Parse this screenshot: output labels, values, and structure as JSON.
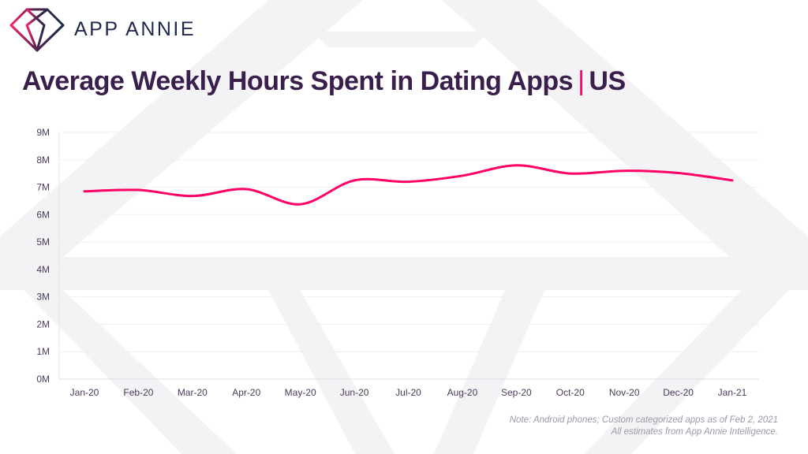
{
  "brand": {
    "name": "APP ANNIE"
  },
  "title": {
    "main": "Average Weekly Hours Spent in Dating Apps",
    "separator": "|",
    "region": "US"
  },
  "notes": [
    "Note: Android phones; Custom categorized apps as of Feb 2, 2021",
    "All estimates from App Annie Intelligence."
  ],
  "colors": {
    "line": "#ff0066",
    "title": "#3a1f4c",
    "logo_text": "#1e2a4a",
    "watermark": "#f3f3f5"
  },
  "chart_data": {
    "type": "line",
    "title": "Average Weekly Hours Spent in Dating Apps | US",
    "categories": [
      "Jan-20",
      "Feb-20",
      "Mar-20",
      "Apr-20",
      "May-20",
      "Jun-20",
      "Jul-20",
      "Aug-20",
      "Sep-20",
      "Oct-20",
      "Nov-20",
      "Dec-20",
      "Jan-21"
    ],
    "values": [
      6.85,
      6.9,
      6.68,
      6.93,
      6.38,
      7.25,
      7.2,
      7.42,
      7.8,
      7.5,
      7.6,
      7.52,
      7.25
    ],
    "unit": "M",
    "yticks": [
      "0M",
      "1M",
      "2M",
      "3M",
      "4M",
      "5M",
      "6M",
      "7M",
      "8M",
      "9M"
    ],
    "ylim": [
      0,
      9
    ],
    "grid": true,
    "smooth": true,
    "legend": "none"
  }
}
